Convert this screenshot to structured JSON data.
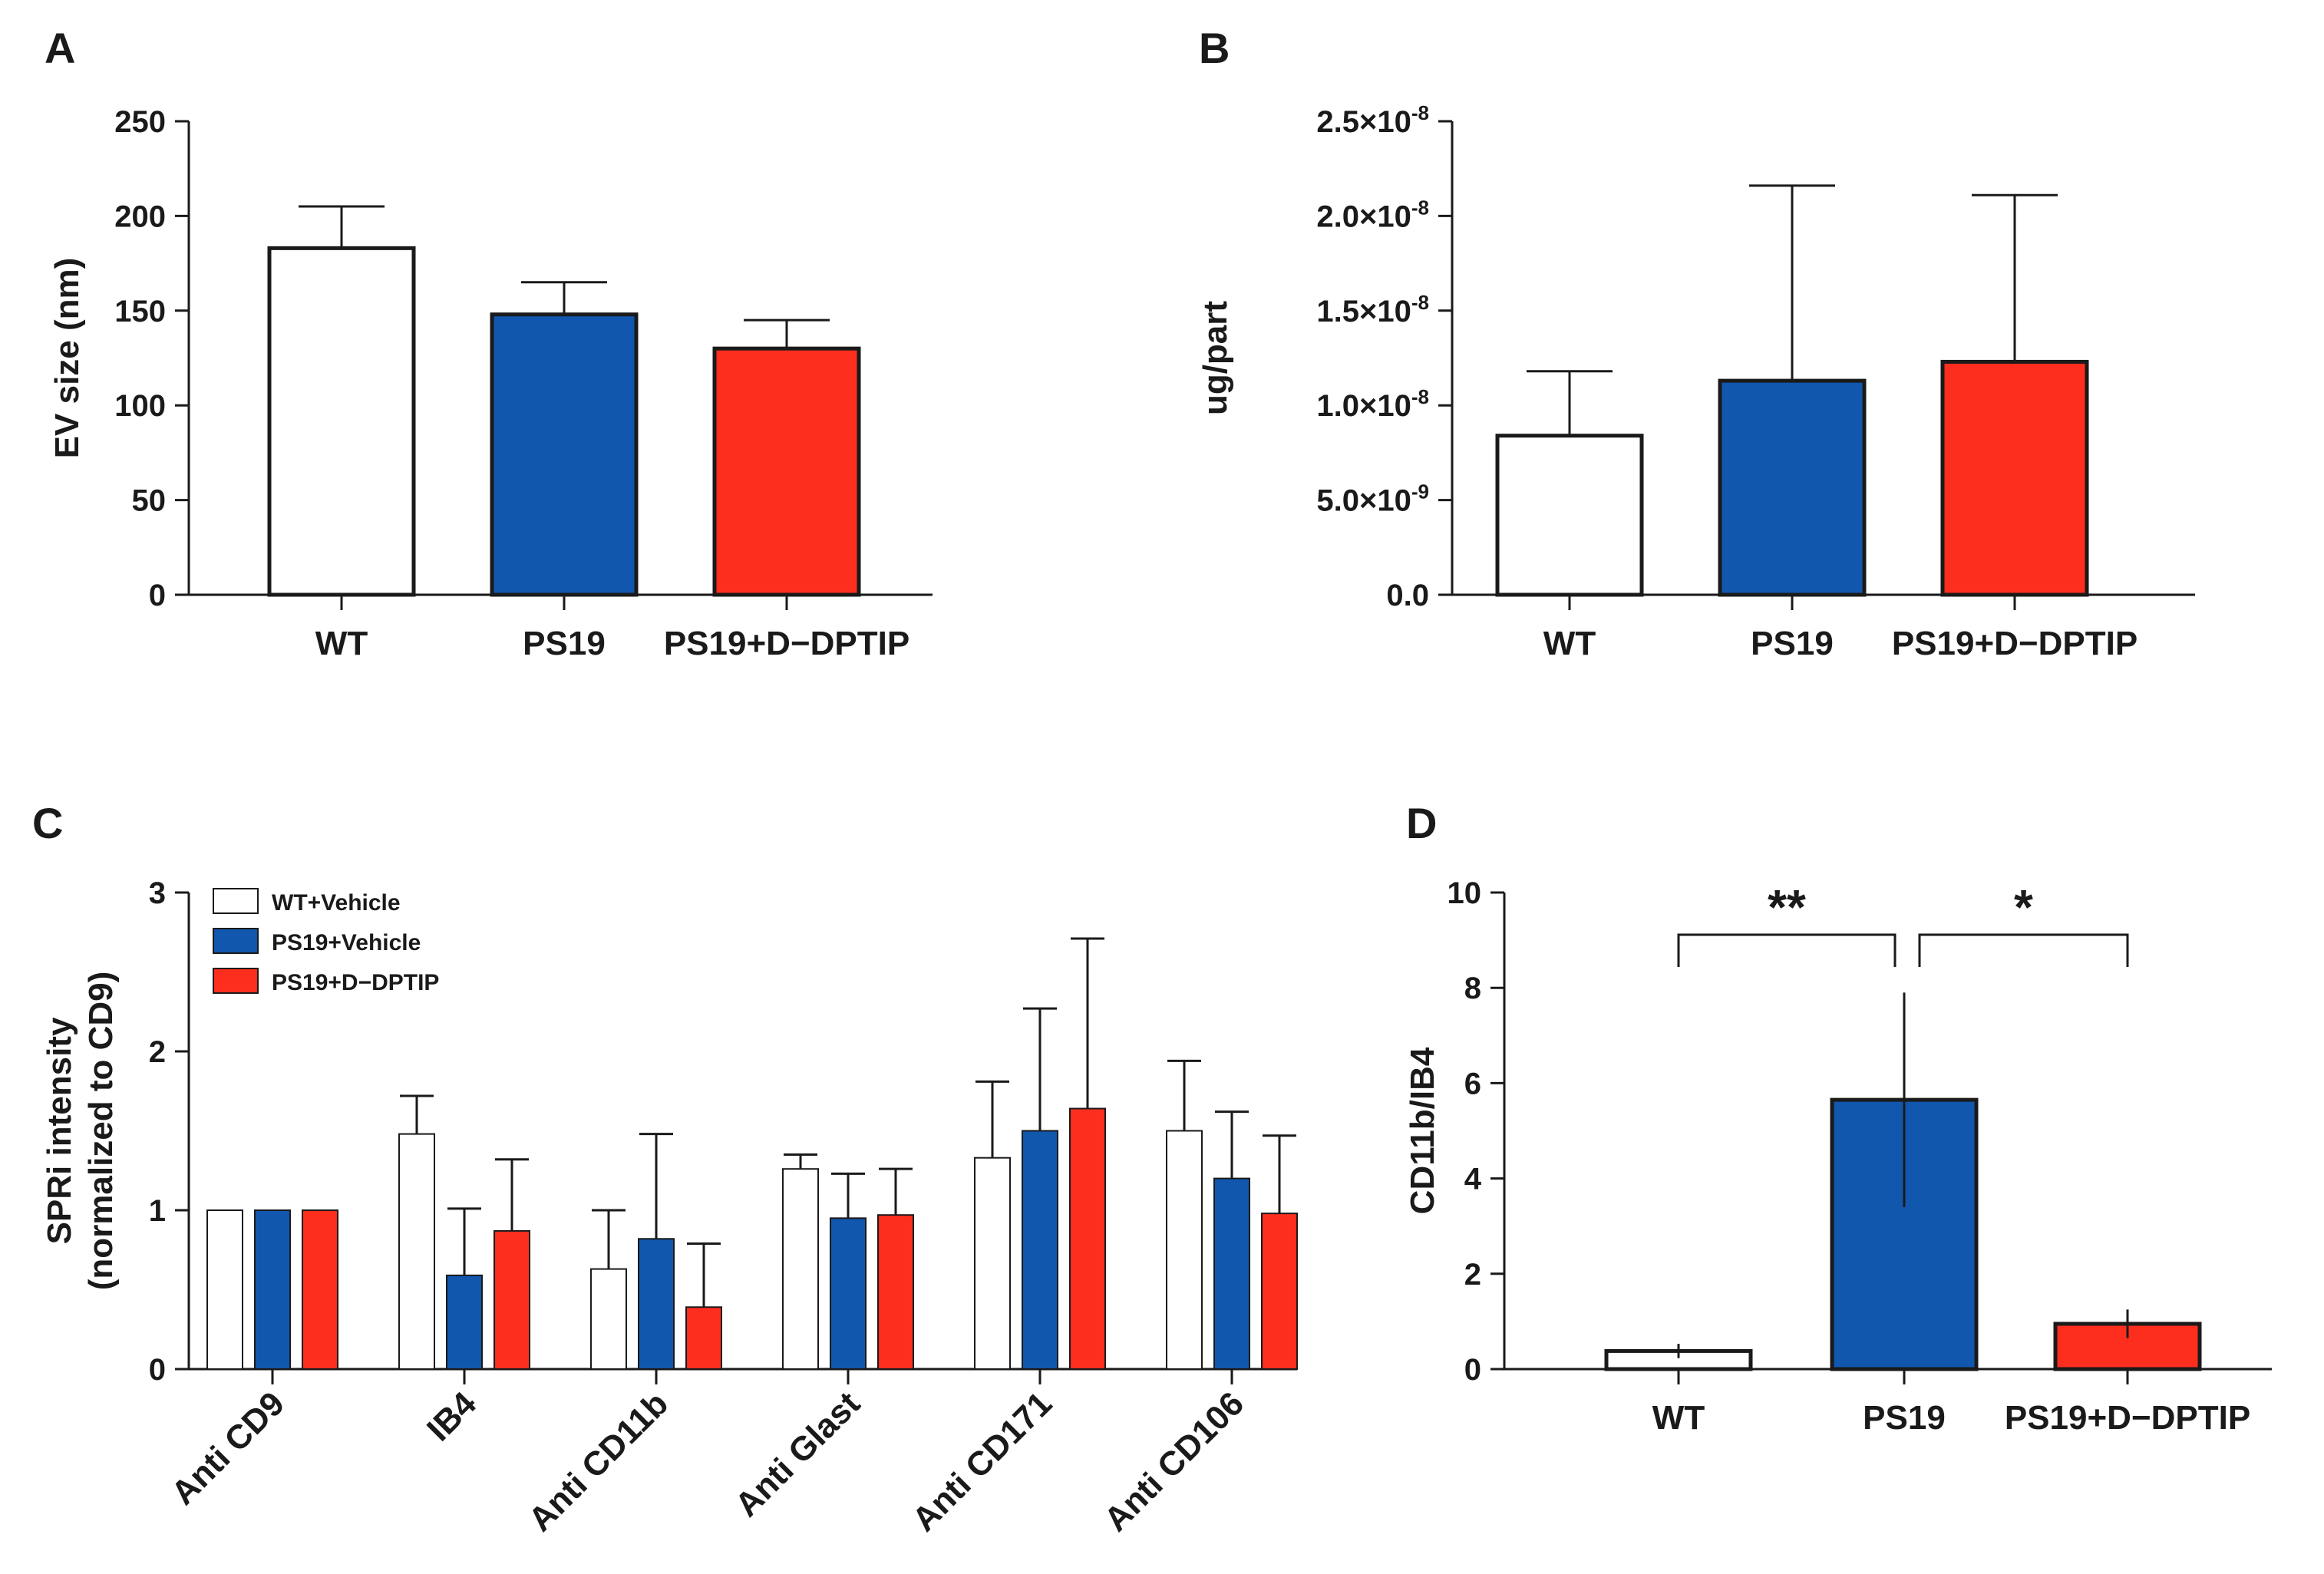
{
  "colors": {
    "wt": "#ffffff",
    "ps19": "#1157ae",
    "dptip": "#fe2e1f",
    "ink": "#1a1a1a"
  },
  "chart_data": [
    {
      "panel": "A",
      "type": "bar",
      "title": "",
      "ylabel": "EV size (nm)",
      "xlabel": "",
      "ylim": [
        0,
        250
      ],
      "yticks": [
        "0",
        "50",
        "100",
        "150",
        "200",
        "250"
      ],
      "ytick_values": [
        0,
        50,
        100,
        150,
        200,
        250
      ],
      "categories": [
        "WT",
        "PS19",
        "PS19+D−DPTIP"
      ],
      "values": [
        183,
        148,
        130
      ],
      "errors": [
        22,
        17,
        15
      ],
      "bar_colors": [
        "wt",
        "ps19",
        "dptip"
      ]
    },
    {
      "panel": "B",
      "type": "bar",
      "title": "",
      "ylabel": "ug/part",
      "xlabel": "",
      "ylim": [
        0,
        2.5e-08
      ],
      "yticks": [
        "0.0",
        "5.0×10",
        "1.0×10",
        "1.5×10",
        "2.0×10",
        "2.5×10"
      ],
      "ytick_exponents": [
        "",
        "-9",
        "-8",
        "-8",
        "-8",
        "-8"
      ],
      "ytick_values": [
        0,
        5e-09,
        1e-08,
        1.5e-08,
        2e-08,
        2.5e-08
      ],
      "categories": [
        "WT",
        "PS19",
        "PS19+D−DPTIP"
      ],
      "values": [
        8.4e-09,
        1.13e-08,
        1.23e-08
      ],
      "errors": [
        3.4e-09,
        1.03e-08,
        8.8e-09
      ],
      "bar_colors": [
        "wt",
        "ps19",
        "dptip"
      ]
    },
    {
      "panel": "C",
      "type": "bar",
      "title": "",
      "ylabel": "SPRi intensity",
      "ylabel2": "(normalized to CD9)",
      "xlabel": "",
      "ylim": [
        0,
        3
      ],
      "yticks": [
        "0",
        "1",
        "2",
        "3"
      ],
      "ytick_values": [
        0,
        1,
        2,
        3
      ],
      "categories": [
        "Anti CD9",
        "IB4",
        "Anti CD11b",
        "Anti Glast",
        "Anti CD171",
        "Anti CD106"
      ],
      "legend_position": "top-left",
      "series": [
        {
          "name": "WT+Vehicle",
          "color": "wt",
          "values": [
            1.0,
            1.48,
            0.63,
            1.26,
            1.33,
            1.5
          ],
          "errors": [
            0,
            0.24,
            0.37,
            0.09,
            0.48,
            0.44
          ]
        },
        {
          "name": "PS19+Vehicle",
          "color": "ps19",
          "values": [
            1.0,
            0.59,
            0.82,
            0.95,
            1.5,
            1.2
          ],
          "errors": [
            0,
            0.42,
            0.66,
            0.28,
            0.77,
            0.42
          ]
        },
        {
          "name": "PS19+D−DPTIP",
          "color": "dptip",
          "values": [
            1.0,
            0.87,
            0.39,
            0.97,
            1.64,
            0.98
          ],
          "errors": [
            0,
            0.45,
            0.4,
            0.29,
            1.07,
            0.49
          ]
        }
      ]
    },
    {
      "panel": "D",
      "type": "bar",
      "title": "",
      "ylabel": "CD11b/IB4",
      "xlabel": "",
      "ylim": [
        0,
        10
      ],
      "yticks": [
        "0",
        "2",
        "4",
        "6",
        "8",
        "10"
      ],
      "ytick_values": [
        0,
        2,
        4,
        6,
        8,
        10
      ],
      "categories": [
        "WT",
        "PS19",
        "PS19+D−DPTIP"
      ],
      "values": [
        0.38,
        5.65,
        0.95
      ],
      "errors": [
        0.15,
        2.25,
        0.3
      ],
      "bar_colors": [
        "wt",
        "ps19",
        "dptip"
      ],
      "significance": [
        {
          "from": 0,
          "to": 1,
          "label": "**"
        },
        {
          "from": 1,
          "to": 2,
          "label": "*"
        }
      ]
    }
  ]
}
